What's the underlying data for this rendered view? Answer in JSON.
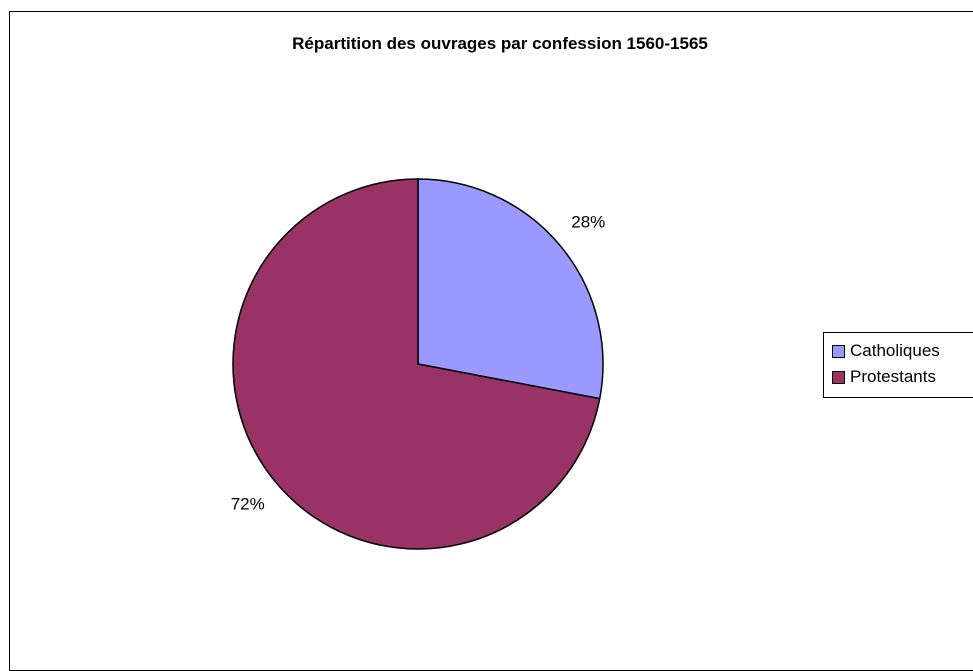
{
  "chart_data": {
    "type": "pie",
    "title": "Répartition des ouvrages par confession 1560-1565",
    "categories": [
      "Catholiques",
      "Protestants"
    ],
    "values": [
      28,
      72
    ],
    "labels": [
      "28%",
      "72%"
    ],
    "colors": [
      "#9999ff",
      "#993366"
    ],
    "legend_position": "right",
    "start_angle": "top",
    "direction": "clockwise"
  }
}
